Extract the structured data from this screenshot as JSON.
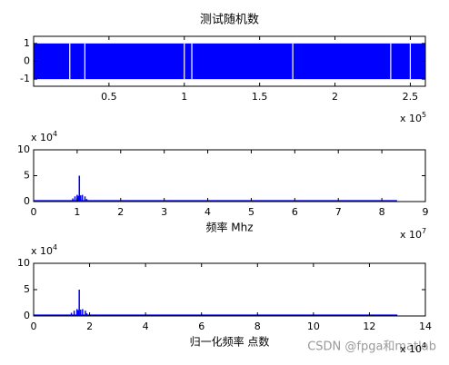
{
  "chart_data": [
    {
      "type": "band",
      "title": "测试随机数",
      "xlim": [
        0,
        2.6
      ],
      "ylim": [
        -1.4,
        1.4
      ],
      "xticks": [
        0.5,
        1,
        1.5,
        2,
        2.5
      ],
      "yticks": [
        -1,
        0,
        1
      ],
      "x_multiplier": "x 10",
      "x_exponent": 5,
      "band": {
        "x": [
          0,
          2.6
        ],
        "low": -1,
        "high": 1,
        "color": "#0000ff"
      },
      "gaps_x": [
        0.24,
        0.34,
        1.0,
        1.05,
        1.72,
        2.37,
        2.5
      ]
    },
    {
      "type": "spectrum",
      "xlabel": "频率 Mhz",
      "xlim": [
        0,
        9
      ],
      "ylim": [
        0,
        10
      ],
      "xticks": [
        0,
        1,
        2,
        3,
        4,
        5,
        6,
        7,
        8,
        9
      ],
      "yticks": [
        0,
        5,
        10
      ],
      "x_multiplier": "x 10",
      "x_exponent": 7,
      "y_multiplier": "x 10",
      "y_exponent": 4,
      "color": "#0000ff",
      "x": [
        0.9,
        0.95,
        1.0,
        1.03,
        1.05,
        1.08,
        1.12,
        1.18,
        1.22
      ],
      "values": [
        0.6,
        1.0,
        1.3,
        1.1,
        5,
        1.2,
        1.3,
        1.0,
        0.5
      ],
      "baseline": {
        "x": [
          0,
          8.35
        ],
        "values": [
          0.15,
          0.15
        ]
      }
    },
    {
      "type": "spectrum",
      "xlabel": "归一化频率 点数",
      "xlim": [
        0,
        14
      ],
      "ylim": [
        0,
        10
      ],
      "xticks": [
        0,
        2,
        4,
        6,
        8,
        10,
        12,
        14
      ],
      "yticks": [
        0,
        5,
        10
      ],
      "x_multiplier": "x 10",
      "x_exponent": 4,
      "y_multiplier": "x 10",
      "y_exponent": 4,
      "color": "#0000ff",
      "x": [
        1.35,
        1.45,
        1.55,
        1.6,
        1.63,
        1.68,
        1.75,
        1.85,
        1.9
      ],
      "values": [
        0.6,
        1.0,
        1.3,
        1.1,
        5,
        1.2,
        1.3,
        1.0,
        0.5
      ],
      "baseline": {
        "x": [
          0,
          13
        ],
        "values": [
          0.15,
          0.15
        ]
      }
    }
  ],
  "watermark": "CSDN @fpga和matlab"
}
